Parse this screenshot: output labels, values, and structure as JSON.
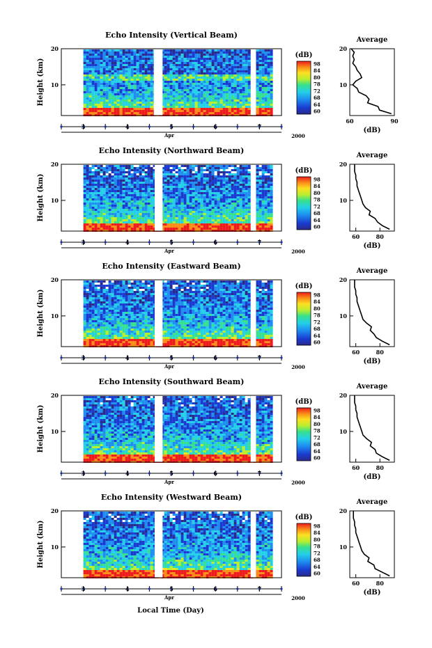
{
  "chart_data": {
    "type": "heatmap",
    "x_axis": {
      "ticks": [
        "3",
        "4",
        "5",
        "6",
        "7"
      ],
      "month": "Apr",
      "year": "2000",
      "label": "Local Time (Day)"
    },
    "y_axis": {
      "label": "Height (km)",
      "ticks": [
        "20",
        "10"
      ],
      "range_km": [
        1.5,
        20
      ]
    },
    "colorbar": {
      "unit": "(dB)",
      "ticks": [
        "98",
        "84",
        "80",
        "78",
        "72",
        "68",
        "64",
        "60"
      ]
    },
    "average_title": "Average",
    "average_xlabel": "(dB)",
    "panels": [
      {
        "title": "Echo Intensity (Vertical Beam)",
        "avg_xticks": [
          "60",
          "90"
        ],
        "avg_xlim": [
          60,
          90
        ],
        "profile": {
          "height_km": [
            2,
            3,
            4,
            5,
            6,
            7,
            8,
            9,
            10,
            11,
            12,
            13,
            14,
            15,
            16,
            17,
            18,
            19,
            20
          ],
          "avg_db": [
            88,
            80,
            79,
            72,
            73,
            71,
            66,
            65,
            62,
            64,
            68,
            67,
            65,
            64,
            62,
            63,
            62,
            63,
            61
          ]
        }
      },
      {
        "title": "Echo Intensity (Northward Beam)",
        "avg_xticks": [
          "60",
          "80"
        ],
        "avg_xlim": [
          55,
          92
        ],
        "profile": {
          "height_km": [
            2,
            3,
            4,
            5,
            6,
            7,
            8,
            9,
            10,
            11,
            12,
            13,
            14,
            15,
            16,
            17,
            18,
            19,
            20
          ],
          "avg_db": [
            88,
            82,
            78,
            76,
            71,
            72,
            68,
            66,
            65,
            64,
            63,
            62,
            61,
            61,
            60,
            60,
            59,
            59,
            59
          ]
        }
      },
      {
        "title": "Echo Intensity (Eastward Beam)",
        "avg_xticks": [
          "60",
          "80"
        ],
        "avg_xlim": [
          55,
          92
        ],
        "profile": {
          "height_km": [
            2,
            3,
            4,
            5,
            6,
            7,
            8,
            9,
            10,
            11,
            12,
            13,
            14,
            15,
            16,
            17,
            18,
            19,
            20
          ],
          "avg_db": [
            88,
            82,
            77,
            75,
            72,
            73,
            69,
            66,
            65,
            64,
            63,
            62,
            61,
            61,
            60,
            60,
            59,
            59,
            59
          ]
        }
      },
      {
        "title": "Echo Intensity (Southward Beam)",
        "avg_xticks": [
          "60",
          "80"
        ],
        "avg_xlim": [
          55,
          92
        ],
        "profile": {
          "height_km": [
            2,
            3,
            4,
            5,
            6,
            7,
            8,
            9,
            10,
            11,
            12,
            13,
            14,
            15,
            16,
            17,
            18,
            19,
            20
          ],
          "avg_db": [
            88,
            82,
            77,
            76,
            72,
            73,
            69,
            66,
            65,
            64,
            63,
            62,
            61,
            61,
            60,
            60,
            59,
            59,
            59
          ]
        }
      },
      {
        "title": "Echo Intensity (Westward Beam)",
        "avg_xticks": [
          "60",
          "80"
        ],
        "avg_xlim": [
          55,
          92
        ],
        "profile": {
          "height_km": [
            2,
            3,
            4,
            5,
            6,
            7,
            8,
            9,
            10,
            11,
            12,
            13,
            14,
            15,
            16,
            17,
            18,
            19,
            20
          ],
          "avg_db": [
            88,
            82,
            76,
            75,
            70,
            71,
            67,
            65,
            64,
            63,
            62,
            61,
            60,
            60,
            59,
            59,
            58,
            58,
            58
          ]
        }
      }
    ],
    "data_gaps": [
      {
        "panel": 0,
        "day_from": 4.6,
        "day_to": 4.8
      },
      {
        "panel": 0,
        "day_from": 6.8,
        "day_to": 6.92
      },
      {
        "panel": 1,
        "day_from": 4.62,
        "day_to": 4.8
      },
      {
        "panel": 1,
        "day_from": 6.8,
        "day_to": 6.92
      },
      {
        "panel": 2,
        "day_from": 4.62,
        "day_to": 4.8
      },
      {
        "panel": 2,
        "day_from": 6.8,
        "day_to": 6.92
      },
      {
        "panel": 3,
        "day_from": 4.62,
        "day_to": 4.8
      },
      {
        "panel": 3,
        "day_from": 6.8,
        "day_to": 6.92
      },
      {
        "panel": 4,
        "day_from": 4.62,
        "day_to": 4.8
      },
      {
        "panel": 4,
        "day_from": 6.8,
        "day_to": 6.92
      }
    ],
    "data_start_day": 3.0,
    "data_end_day": 7.3
  }
}
